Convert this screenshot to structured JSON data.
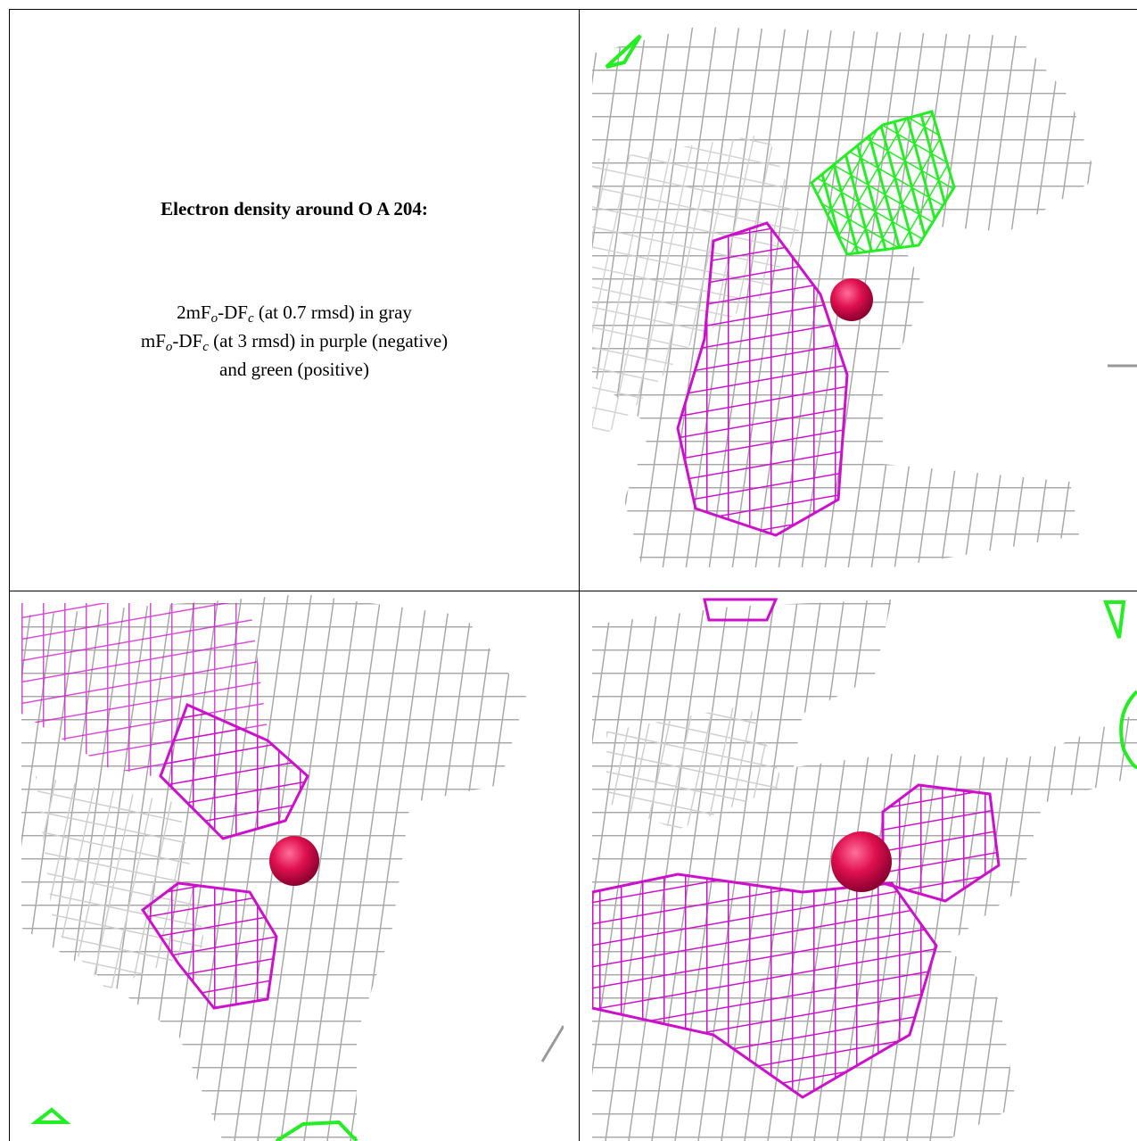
{
  "legend": {
    "title": "Electron density around O A 204:",
    "lines": [
      [
        "2mF",
        "o",
        "-DF",
        "c",
        " (at 0.7 rmsd) in gray"
      ],
      [
        "mF",
        "o",
        "-DF",
        "c",
        " (at 3 rmsd) in purple (negative)"
      ],
      [
        "and green (positive)"
      ]
    ]
  }
}
